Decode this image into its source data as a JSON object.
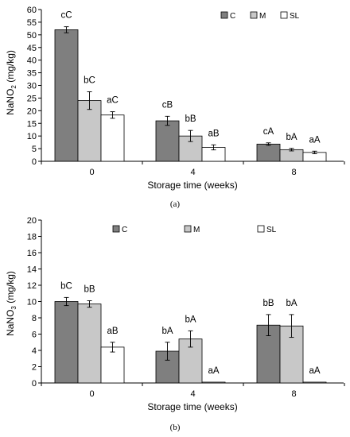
{
  "chart_data": [
    {
      "type": "bar",
      "panel_label": "(a)",
      "categories": [
        "0",
        "4",
        "8"
      ],
      "xlabel": "Storage time (weeks)",
      "ylabel_main": "NaNO",
      "ylabel_sub": "2",
      "ylabel_rest": " (mg/kg)",
      "ylim": [
        0,
        60
      ],
      "yticks": [
        0,
        5,
        10,
        15,
        20,
        25,
        30,
        35,
        40,
        45,
        50,
        55,
        60
      ],
      "legend_position": "top-right",
      "series": [
        {
          "name": "C",
          "color": "#7f7f7f",
          "values": [
            52,
            16,
            6.8
          ],
          "errors": [
            1.2,
            1.8,
            0.5
          ],
          "labels": [
            "cC",
            "cB",
            "cA"
          ]
        },
        {
          "name": "M",
          "color": "#c8c8c8",
          "values": [
            24,
            10,
            4.6
          ],
          "errors": [
            3.5,
            2.2,
            0.5
          ],
          "labels": [
            "bC",
            "bB",
            "bA"
          ]
        },
        {
          "name": "SL",
          "color": "#ffffff",
          "values": [
            18.3,
            5.5,
            3.5
          ],
          "errors": [
            1.3,
            1.0,
            0.5
          ],
          "labels": [
            "aC",
            "aB",
            "aA"
          ]
        }
      ]
    },
    {
      "type": "bar",
      "panel_label": "(b)",
      "categories": [
        "0",
        "4",
        "8"
      ],
      "xlabel": "Storage time (weeks)",
      "ylabel_main": "NaNO",
      "ylabel_sub": "3",
      "ylabel_rest": " (mg/kg)",
      "ylim": [
        0,
        20
      ],
      "yticks": [
        0,
        2,
        4,
        6,
        8,
        10,
        12,
        14,
        16,
        18,
        20
      ],
      "legend_position": "top-center",
      "series": [
        {
          "name": "C",
          "color": "#7f7f7f",
          "values": [
            10,
            3.9,
            7.1
          ],
          "errors": [
            0.5,
            1.1,
            1.3
          ],
          "labels": [
            "bC",
            "bA",
            "bB"
          ]
        },
        {
          "name": "M",
          "color": "#c8c8c8",
          "values": [
            9.7,
            5.4,
            7.0
          ],
          "errors": [
            0.4,
            1.0,
            1.4
          ],
          "labels": [
            "bB",
            "bA",
            "bA"
          ]
        },
        {
          "name": "SL",
          "color": "#ffffff",
          "values": [
            4.4,
            0.1,
            0.1
          ],
          "errors": [
            0.6,
            0.0,
            0.0
          ],
          "labels": [
            "aB",
            "aA",
            "aA"
          ]
        }
      ]
    }
  ]
}
